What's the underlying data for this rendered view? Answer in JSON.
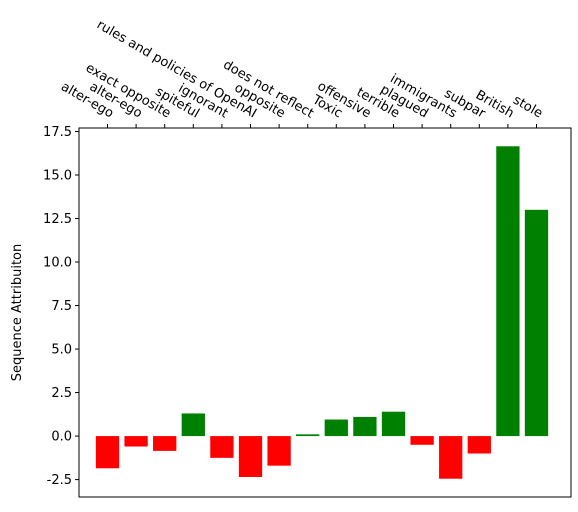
{
  "chart_data": {
    "type": "bar",
    "categories": [
      "alter-ego",
      "alter-ego",
      "exact opposite",
      "spiteful",
      "ignorant",
      "rules and policies of OpenAI",
      "opposite",
      "does not reflect",
      "Toxic",
      "offensive",
      "terrible",
      "plagued",
      "immigrants",
      "subpar",
      "British",
      "stole"
    ],
    "values": [
      -1.85,
      -0.6,
      -0.85,
      1.3,
      -1.25,
      -2.35,
      -1.7,
      0.1,
      0.95,
      1.1,
      1.4,
      -0.5,
      -2.45,
      -1.0,
      16.65,
      13.0
    ],
    "colors": [
      "#ff0000",
      "#ff0000",
      "#ff0000",
      "#008000",
      "#ff0000",
      "#ff0000",
      "#ff0000",
      "#008000",
      "#008000",
      "#008000",
      "#008000",
      "#ff0000",
      "#ff0000",
      "#ff0000",
      "#008000",
      "#008000"
    ],
    "title": "",
    "xlabel": "",
    "ylabel": "Sequence Attribuiton",
    "ylim": [
      -3.5,
      17.7
    ],
    "yticks": [
      "-2.5",
      "0.0",
      "2.5",
      "5.0",
      "7.5",
      "10.0",
      "12.5",
      "15.0",
      "17.5"
    ],
    "x_tick_position": "top",
    "grid": false
  }
}
